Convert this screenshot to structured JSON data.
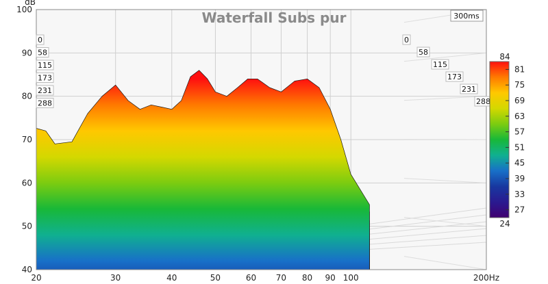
{
  "chart_data": {
    "type": "waterfall",
    "title": "Waterfall Subs pur",
    "yunit": "dB",
    "xunit": "Hz",
    "time_span_label": "300ms",
    "y_range": [
      40,
      100
    ],
    "y_ticks": [
      "40",
      "50",
      "60",
      "70",
      "80",
      "90",
      "100"
    ],
    "x_range": [
      20,
      200
    ],
    "x_scale": "log",
    "x_ticks": [
      "20",
      "30",
      "40",
      "50",
      "60",
      "70",
      "80",
      "90",
      "100",
      "200Hz"
    ],
    "time_labels_left": [
      "0",
      "58",
      "115",
      "173",
      "231",
      "288"
    ],
    "time_labels_right": [
      "0",
      "58",
      "115",
      "173",
      "231",
      "288"
    ],
    "colorbar": {
      "max_label": "84",
      "min_label": "24",
      "labels": [
        "81",
        "75",
        "69",
        "63",
        "57",
        "51",
        "45",
        "39",
        "33",
        "27"
      ],
      "colors": [
        "#ff1010",
        "#ff7a00",
        "#ffc800",
        "#d4d800",
        "#7ccc10",
        "#18b838",
        "#10b090",
        "#1870c8",
        "#1838a0",
        "#2a1a90",
        "#400070"
      ]
    },
    "grid": true,
    "slices": 20,
    "first_slice_response": {
      "x_hz": [
        20,
        21,
        22,
        24,
        26,
        28,
        30,
        32,
        34,
        36,
        38,
        40,
        42,
        44,
        46,
        48,
        50,
        53,
        56,
        59,
        62,
        66,
        70,
        75,
        80,
        85,
        90,
        95,
        100,
        110
      ],
      "db": [
        72.6,
        72,
        69,
        69.5,
        76,
        80,
        82.6,
        79,
        77,
        78,
        77.5,
        77,
        79,
        84.5,
        86,
        84,
        81,
        80,
        82,
        84,
        84,
        82,
        81,
        83.5,
        84,
        82,
        77,
        70,
        62,
        55
      ]
    }
  }
}
